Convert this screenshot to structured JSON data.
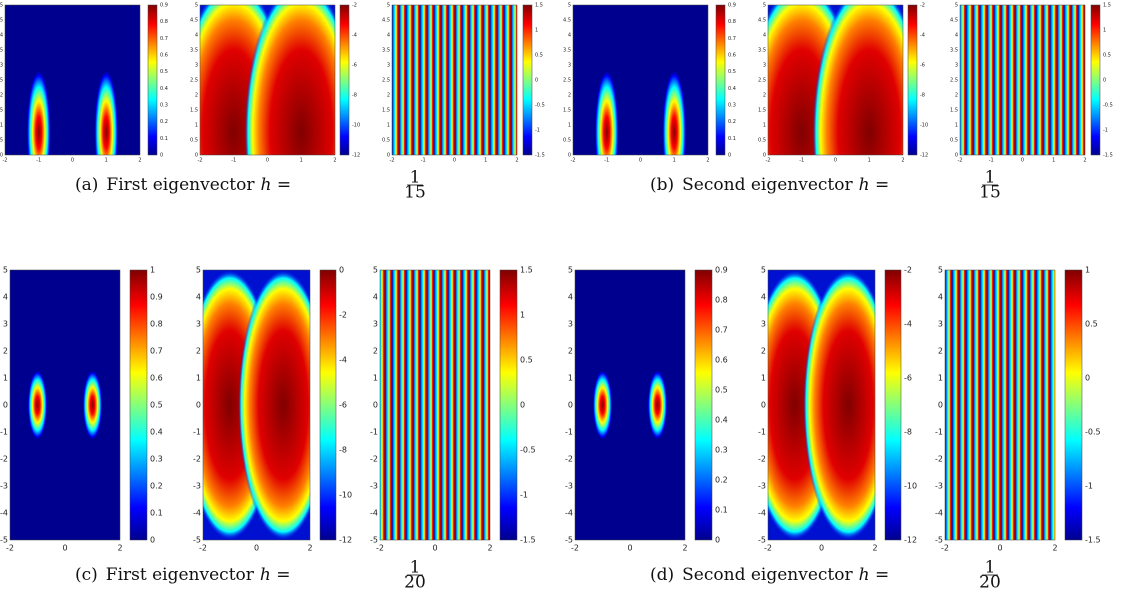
{
  "panels": [
    {
      "caption": {
        "label": "(a)",
        "text": "First eigenvector",
        "lhs": "h =",
        "num": "1",
        "den": "15"
      },
      "plots": [
        {
          "xticks": [
            -2,
            -1,
            0,
            1,
            2
          ],
          "yticks": [
            0,
            0.5,
            1,
            1.5,
            2,
            2.5,
            3,
            3.5,
            4,
            4.5,
            5
          ],
          "cbar_ticks": [
            0,
            0.1,
            0.2,
            0.3,
            0.4,
            0.5,
            0.6,
            0.7,
            0.8,
            0.9
          ]
        },
        {
          "xticks": [
            -2,
            -1,
            0,
            1,
            2
          ],
          "yticks": [
            0,
            0.5,
            1,
            1.5,
            2,
            2.5,
            3,
            3.5,
            4,
            4.5,
            5
          ],
          "cbar_ticks": [
            -12,
            -10,
            -8,
            -6,
            -4,
            -2
          ]
        },
        {
          "xticks": [
            -2,
            -1,
            0,
            1,
            2
          ],
          "yticks": [
            0,
            0.5,
            1,
            1.5,
            2,
            2.5,
            3,
            3.5,
            4,
            4.5,
            5
          ],
          "cbar_ticks": [
            -1.5,
            -1,
            -0.5,
            0,
            0.5,
            1,
            1.5
          ]
        }
      ]
    },
    {
      "caption": {
        "label": "(b)",
        "text": "Second eigenvector",
        "lhs": "h =",
        "num": "1",
        "den": "15"
      },
      "plots": [
        {
          "xticks": [
            -2,
            -1,
            0,
            1,
            2
          ],
          "yticks": [
            0,
            0.5,
            1,
            1.5,
            2,
            2.5,
            3,
            3.5,
            4,
            4.5,
            5
          ],
          "cbar_ticks": [
            0,
            0.1,
            0.2,
            0.3,
            0.4,
            0.5,
            0.6,
            0.7,
            0.8,
            0.9
          ]
        },
        {
          "xticks": [
            -2,
            -1,
            0,
            1,
            2
          ],
          "yticks": [
            0,
            0.5,
            1,
            1.5,
            2,
            2.5,
            3,
            3.5,
            4,
            4.5,
            5
          ],
          "cbar_ticks": [
            -12,
            -10,
            -8,
            -6,
            -4,
            -2
          ]
        },
        {
          "xticks": [
            -2,
            -1,
            0,
            1,
            2
          ],
          "yticks": [
            0,
            0.5,
            1,
            1.5,
            2,
            2.5,
            3,
            3.5,
            4,
            4.5,
            5
          ],
          "cbar_ticks": [
            -1.5,
            -1,
            -0.5,
            0,
            0.5,
            1,
            1.5
          ]
        }
      ]
    },
    {
      "caption": {
        "label": "(c)",
        "text": "First eigenvector",
        "lhs": "h =",
        "num": "1",
        "den": "20"
      },
      "plots": [
        {
          "xticks": [
            -2,
            0,
            2
          ],
          "yticks": [
            -5,
            -4,
            -3,
            -2,
            -1,
            0,
            1,
            2,
            3,
            4,
            5
          ],
          "cbar_ticks": [
            0,
            0.1,
            0.2,
            0.3,
            0.4,
            0.5,
            0.6,
            0.7,
            0.8,
            0.9,
            1
          ]
        },
        {
          "xticks": [
            -2,
            0,
            2
          ],
          "yticks": [
            -5,
            -4,
            -3,
            -2,
            -1,
            0,
            1,
            2,
            3,
            4,
            5
          ],
          "cbar_ticks": [
            -12,
            -10,
            -8,
            -6,
            -4,
            -2,
            0
          ]
        },
        {
          "xticks": [
            -2,
            0,
            2
          ],
          "yticks": [
            -5,
            -4,
            -3,
            -2,
            -1,
            0,
            1,
            2,
            3,
            4,
            5
          ],
          "cbar_ticks": [
            -1.5,
            -1,
            -0.5,
            0,
            0.5,
            1,
            1.5
          ]
        }
      ]
    },
    {
      "caption": {
        "label": "(d)",
        "text": "Second eigenvector",
        "lhs": "h =",
        "num": "1",
        "den": "20"
      },
      "plots": [
        {
          "xticks": [
            -2,
            0,
            2
          ],
          "yticks": [
            -5,
            -4,
            -3,
            -2,
            -1,
            0,
            1,
            2,
            3,
            4,
            5
          ],
          "cbar_ticks": [
            0,
            0.1,
            0.2,
            0.3,
            0.4,
            0.5,
            0.6,
            0.7,
            0.8,
            0.9
          ]
        },
        {
          "xticks": [
            -2,
            0,
            2
          ],
          "yticks": [
            -5,
            -4,
            -3,
            -2,
            -1,
            0,
            1,
            2,
            3,
            4,
            5
          ],
          "cbar_ticks": [
            -12,
            -10,
            -8,
            -6,
            -4,
            -2
          ]
        },
        {
          "xticks": [
            -2,
            0,
            2
          ],
          "yticks": [
            -5,
            -4,
            -3,
            -2,
            -1,
            0,
            1,
            2,
            3,
            4,
            5
          ],
          "cbar_ticks": [
            -1.5,
            -1,
            -0.5,
            0,
            0.5,
            1
          ]
        }
      ]
    }
  ]
}
